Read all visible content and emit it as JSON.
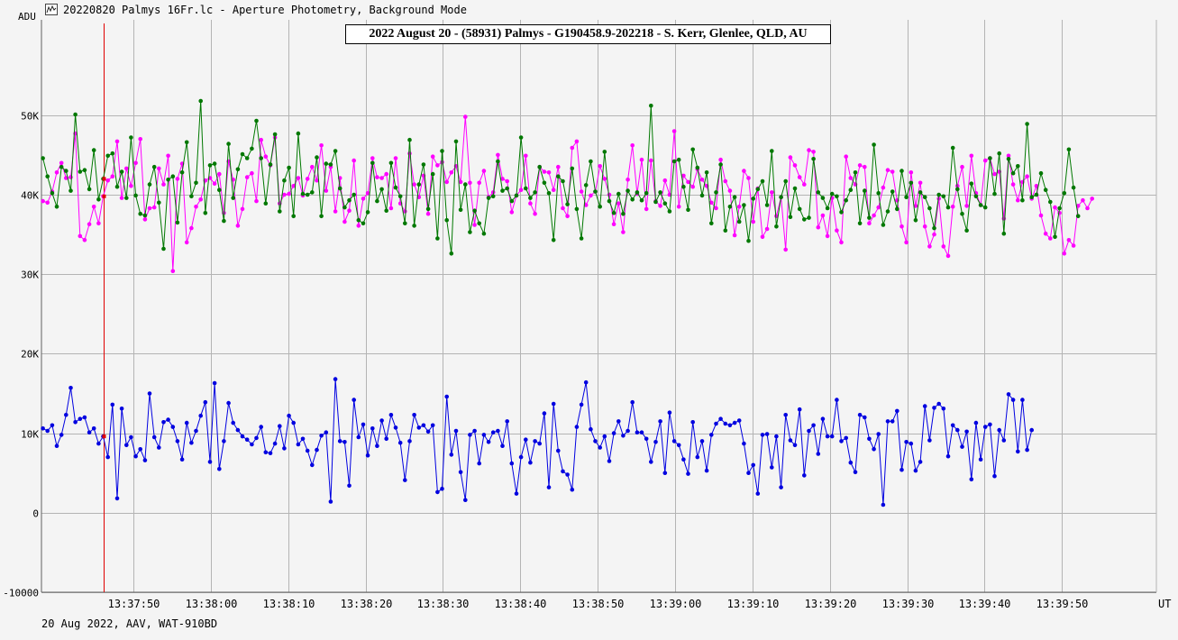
{
  "window": {
    "title": "20220820 Palmys 16Fr.lc - Aperture Photometry, Background Mode"
  },
  "footer": {
    "text": "20 Aug 2022, AAV, WAT-910BD"
  },
  "icons": {
    "app": "lightcurve-app-icon"
  },
  "colors": {
    "background": "#f4f4f4",
    "grid": "#b4b4b4",
    "green_series": "#007800",
    "magenta_series": "#ff00ff",
    "blue_series": "#0000e0",
    "cursor": "#e00000"
  },
  "chart_data": {
    "type": "line",
    "title": "2022 August 20 - (58931) Palmys - G190458.9-202218 - S. Kerr, Glenlee, QLD, AU",
    "ylabel": "ADU",
    "xlabel": "UT",
    "ylim": [
      -10000,
      62000
    ],
    "y_ticks": [
      -10000,
      0,
      10000,
      20000,
      30000,
      40000,
      50000
    ],
    "y_tick_labels": [
      "-10000",
      "0",
      "10K",
      "20K",
      "30K",
      "40K",
      "50K"
    ],
    "x_ticks": [
      "13:37:50",
      "13:38:00",
      "13:38:10",
      "13:38:20",
      "13:38:30",
      "13:38:40",
      "13:38:50",
      "13:39:00",
      "13:39:10",
      "13:39:20",
      "13:39:30",
      "13:39:40",
      "13:39:50"
    ],
    "x_start_seconds_before_first_tick": 12,
    "grid": true,
    "cursor_frame": 13,
    "frame_interval_seconds": 0.6,
    "series": [
      {
        "key": "green",
        "values": [
          44600,
          42300,
          40200,
          38500,
          43500,
          43000,
          40500,
          50100,
          42900,
          43100,
          40700,
          45600,
          39400,
          42000,
          44900,
          45200,
          41000,
          42900,
          39600,
          47200,
          39900,
          37600,
          37400,
          41300,
          43500,
          39000,
          33200,
          41900,
          42300,
          36500,
          42800,
          46600,
          39800,
          41500,
          51800,
          37700,
          43700,
          43900,
          40600,
          36700,
          46400,
          39600,
          43200,
          45100,
          44600,
          45800,
          49300,
          44600,
          38900,
          43800,
          47600,
          37900,
          41800,
          43400,
          37300,
          47700,
          40100,
          40000,
          40300,
          44700,
          37300,
          43900,
          43800,
          45500,
          40800,
          38400,
          39300,
          40000,
          36800,
          36400,
          37800,
          44000,
          39200,
          40700,
          38000,
          44000,
          40900,
          39800,
          36400,
          46900,
          36100,
          41300,
          43800,
          38200,
          42600,
          34500,
          45500,
          36800,
          32600,
          46700,
          38100,
          41300,
          35300,
          38000,
          36400,
          35100,
          39600,
          39800,
          44200,
          40500,
          40800,
          39200,
          39900,
          47200,
          40800,
          39600,
          40300,
          43500,
          41500,
          40200,
          34300,
          42300,
          41700,
          38800,
          43300,
          38200,
          34500,
          41200,
          44200,
          40400,
          38500,
          45400,
          39200,
          37700,
          40100,
          37600,
          40500,
          39400,
          40300,
          39300,
          40200,
          51200,
          39100,
          40300,
          38900,
          37900,
          44200,
          44400,
          41000,
          38100,
          45700,
          43400,
          39900,
          42800,
          36400,
          40300,
          43800,
          35500,
          38500,
          39700,
          36600,
          38700,
          34200,
          39500,
          40700,
          41700,
          38700,
          45500,
          36000,
          39700,
          41700,
          37200,
          40800,
          38200,
          36900,
          37100,
          44500,
          40300,
          39600,
          38300,
          40100,
          39800,
          37800,
          39300,
          40600,
          42800,
          36400,
          40500,
          37100,
          46300,
          40200,
          36200,
          37900,
          40400,
          38200,
          43000,
          39700,
          41500,
          36800,
          40300,
          39700,
          38300,
          35800,
          40000,
          39800,
          38400,
          45900,
          40700,
          37600,
          35500,
          41400,
          39800,
          38700,
          38400,
          44600,
          40100,
          45200,
          35100,
          44500,
          42700,
          43600,
          39300,
          48900,
          39700,
          40000,
          42700,
          40600,
          39100,
          34700,
          38300,
          40200,
          45700,
          40900,
          37300
        ]
      },
      {
        "key": "magenta",
        "values": [
          39200,
          39000,
          40400,
          42800,
          44000,
          42100,
          42200,
          47700,
          34800,
          34300,
          36300,
          38500,
          36400,
          39800,
          41800,
          42300,
          46700,
          39600,
          43300,
          41100,
          44000,
          47000,
          36900,
          38300,
          38400,
          43300,
          41300,
          44900,
          30400,
          42000,
          43900,
          34000,
          35800,
          38500,
          39400,
          41800,
          42100,
          41400,
          42600,
          37700,
          44200,
          41900,
          36100,
          38200,
          42200,
          42700,
          39200,
          46900,
          44800,
          43700,
          47200,
          38900,
          40000,
          40100,
          41100,
          42100,
          39900,
          42000,
          43500,
          41800,
          46200,
          40500,
          43500,
          37900,
          42100,
          36600,
          38000,
          44300,
          36100,
          39500,
          40200,
          44600,
          42200,
          42100,
          42600,
          38300,
          44600,
          38900,
          37900,
          45200,
          41300,
          39700,
          42400,
          37600,
          44800,
          43700,
          44100,
          41600,
          42800,
          43600,
          41600,
          49800,
          41500,
          36200,
          41500,
          43000,
          39700,
          40300,
          45000,
          42000,
          41700,
          37800,
          39900,
          40600,
          44900,
          38900,
          37600,
          43500,
          42900,
          42800,
          40600,
          43500,
          38300,
          37300,
          45900,
          46700,
          40400,
          38700,
          39900,
          40400,
          43600,
          42000,
          40000,
          36300,
          38900,
          35300,
          41900,
          46200,
          40100,
          44400,
          38200,
          44300,
          39200,
          38600,
          41800,
          40000,
          48000,
          38500,
          42400,
          41600,
          41000,
          43200,
          41900,
          41100,
          39000,
          38300,
          44400,
          41700,
          40500,
          34900,
          38500,
          43000,
          42100,
          36600,
          40800,
          34700,
          35700,
          40300,
          37300,
          39700,
          33100,
          44700,
          43700,
          42200,
          41300,
          45600,
          45400,
          35900,
          37400,
          34800,
          39600,
          35500,
          34000,
          44800,
          42100,
          41300,
          43700,
          43500,
          36400,
          37400,
          38400,
          40900,
          43100,
          42900,
          39300,
          36000,
          34000,
          42800,
          38600,
          41500,
          36000,
          33500,
          35000,
          39500,
          33500,
          32300,
          38500,
          41100,
          43500,
          38600,
          44900,
          40200,
          38700,
          44300,
          44600,
          42600,
          42900,
          37000,
          44900,
          41300,
          39300,
          41600,
          42300,
          39500,
          41100,
          37400,
          35100,
          34500,
          38400,
          37700,
          32600,
          34300,
          33600,
          38600,
          39300,
          38300,
          39500
        ]
      },
      {
        "key": "blue",
        "values": [
          10600,
          10300,
          11000,
          8400,
          9800,
          12300,
          15700,
          11400,
          11800,
          12000,
          10100,
          10600,
          8700,
          9600,
          7000,
          13600,
          1800,
          13100,
          8500,
          9500,
          7100,
          8000,
          6600,
          15000,
          9500,
          8200,
          11400,
          11700,
          10800,
          9000,
          6700,
          11300,
          8800,
          10300,
          12200,
          13900,
          6400,
          16300,
          5500,
          9000,
          13800,
          11300,
          10400,
          9600,
          9200,
          8600,
          9400,
          10800,
          7600,
          7500,
          8700,
          10900,
          8100,
          12200,
          11300,
          8600,
          9300,
          7800,
          6000,
          7900,
          9700,
          10100,
          1400,
          16800,
          9000,
          8900,
          3400,
          14200,
          9500,
          11100,
          7200,
          10600,
          8400,
          11600,
          9300,
          12300,
          10700,
          8800,
          4100,
          9000,
          12300,
          10700,
          11000,
          10200,
          11000,
          2600,
          3000,
          14600,
          7300,
          10300,
          5100,
          1600,
          9800,
          10300,
          6200,
          9800,
          8900,
          10100,
          10300,
          8400,
          11500,
          6200,
          2400,
          7000,
          9200,
          6300,
          9000,
          8700,
          12500,
          3200,
          13700,
          7800,
          5200,
          4800,
          2900,
          10800,
          13600,
          16400,
          10500,
          9000,
          8200,
          9600,
          6500,
          10000,
          11500,
          9700,
          10300,
          13900,
          10100,
          10100,
          9300,
          6400,
          8900,
          11500,
          5000,
          12600,
          9000,
          8500,
          6700,
          4900,
          11400,
          7000,
          9000,
          5300,
          9800,
          11200,
          11800,
          11200,
          11000,
          11300,
          11600,
          8700,
          5000,
          6000,
          2400,
          9800,
          9900,
          5700,
          9600,
          3200,
          12300,
          9100,
          8500,
          13000,
          4700,
          10300,
          11000,
          7400,
          11800,
          9600,
          9600,
          14200,
          9000,
          9400,
          6300,
          5100,
          12300,
          12000,
          9300,
          8000,
          9900,
          1000,
          11500,
          11500,
          12800,
          5400,
          8900,
          8700,
          5300,
          6400,
          13400,
          9100,
          13200,
          13700,
          13100,
          7100,
          11000,
          10400,
          8300,
          10200,
          4200,
          11300,
          6700,
          10800,
          11100,
          4600,
          10400,
          9100,
          14900,
          14200,
          7700,
          14200,
          7900,
          10400
        ]
      }
    ]
  }
}
